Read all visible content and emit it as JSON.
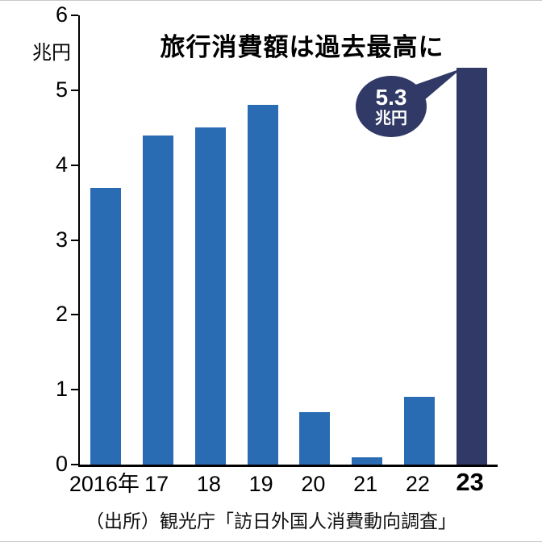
{
  "page": {
    "title": "旅行消費額は過去最高に",
    "unit_label": "兆円",
    "source": "（出所）観光庁「訪日外国人消費動向調査」"
  },
  "callout": {
    "line1": "5.3",
    "line2": "兆円"
  },
  "colors": {
    "bar": "#2a6cb4",
    "highlight": "#313a66"
  },
  "chart_data": {
    "type": "bar",
    "title": "旅行消費額は過去最高に",
    "categories": [
      "2016年",
      "17",
      "18",
      "19",
      "20",
      "21",
      "22",
      "23"
    ],
    "values": [
      3.7,
      4.4,
      4.5,
      4.8,
      0.7,
      0.1,
      0.9,
      5.3
    ],
    "highlight_index": 7,
    "xlabel": "",
    "ylabel": "兆円",
    "ylim": [
      0,
      6
    ],
    "yticks": [
      0,
      1,
      2,
      3,
      4,
      5,
      6
    ],
    "grid": false,
    "annotation": "5.3兆円",
    "annotation_target": "23",
    "source": "（出所）観光庁「訪日外国人消費動向調査」"
  }
}
